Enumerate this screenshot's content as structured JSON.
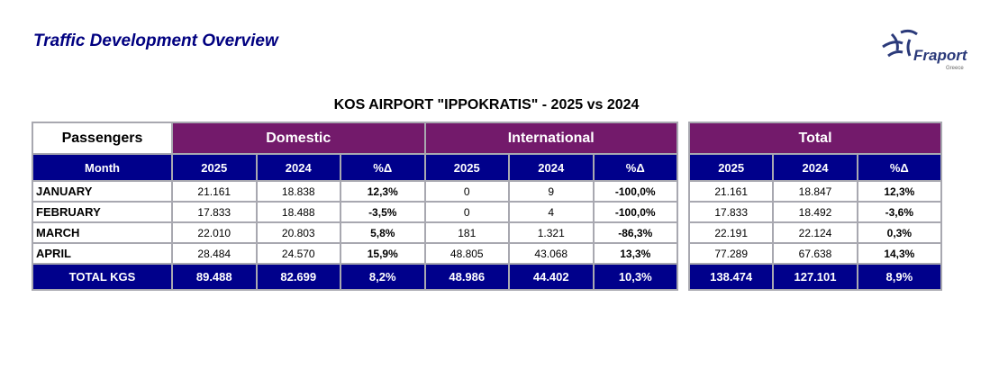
{
  "header": {
    "title": "Traffic Development Overview",
    "logo_text": "Fraport",
    "logo_sub": "Greece"
  },
  "subtitle": "KOS AIRPORT \"IPPOKRATIS\" - 2025 vs 2024",
  "table": {
    "corner": "Passengers",
    "groups": [
      "Domestic",
      "International",
      "Total"
    ],
    "month_header": "Month",
    "col_headers": [
      "2025",
      "2024",
      "%Δ"
    ],
    "rows": [
      {
        "month": "JANUARY",
        "domestic": [
          "21.161",
          "18.838",
          "12,3%"
        ],
        "international": [
          "0",
          "9",
          "-100,0%"
        ],
        "total": [
          "21.161",
          "18.847",
          "12,3%"
        ]
      },
      {
        "month": "FEBRUARY",
        "domestic": [
          "17.833",
          "18.488",
          "-3,5%"
        ],
        "international": [
          "0",
          "4",
          "-100,0%"
        ],
        "total": [
          "17.833",
          "18.492",
          "-3,6%"
        ]
      },
      {
        "month": "MARCH",
        "domestic": [
          "22.010",
          "20.803",
          "5,8%"
        ],
        "international": [
          "181",
          "1.321",
          "-86,3%"
        ],
        "total": [
          "22.191",
          "22.124",
          "0,3%"
        ]
      },
      {
        "month": "APRIL",
        "domestic": [
          "28.484",
          "24.570",
          "15,9%"
        ],
        "international": [
          "48.805",
          "43.068",
          "13,3%"
        ],
        "total": [
          "77.289",
          "67.638",
          "14,3%"
        ]
      }
    ],
    "totals": {
      "month": "TOTAL KGS",
      "domestic": [
        "89.488",
        "82.699",
        "8,2%"
      ],
      "international": [
        "48.986",
        "44.402",
        "10,3%"
      ],
      "total": [
        "138.474",
        "127.101",
        "8,9%"
      ]
    }
  }
}
